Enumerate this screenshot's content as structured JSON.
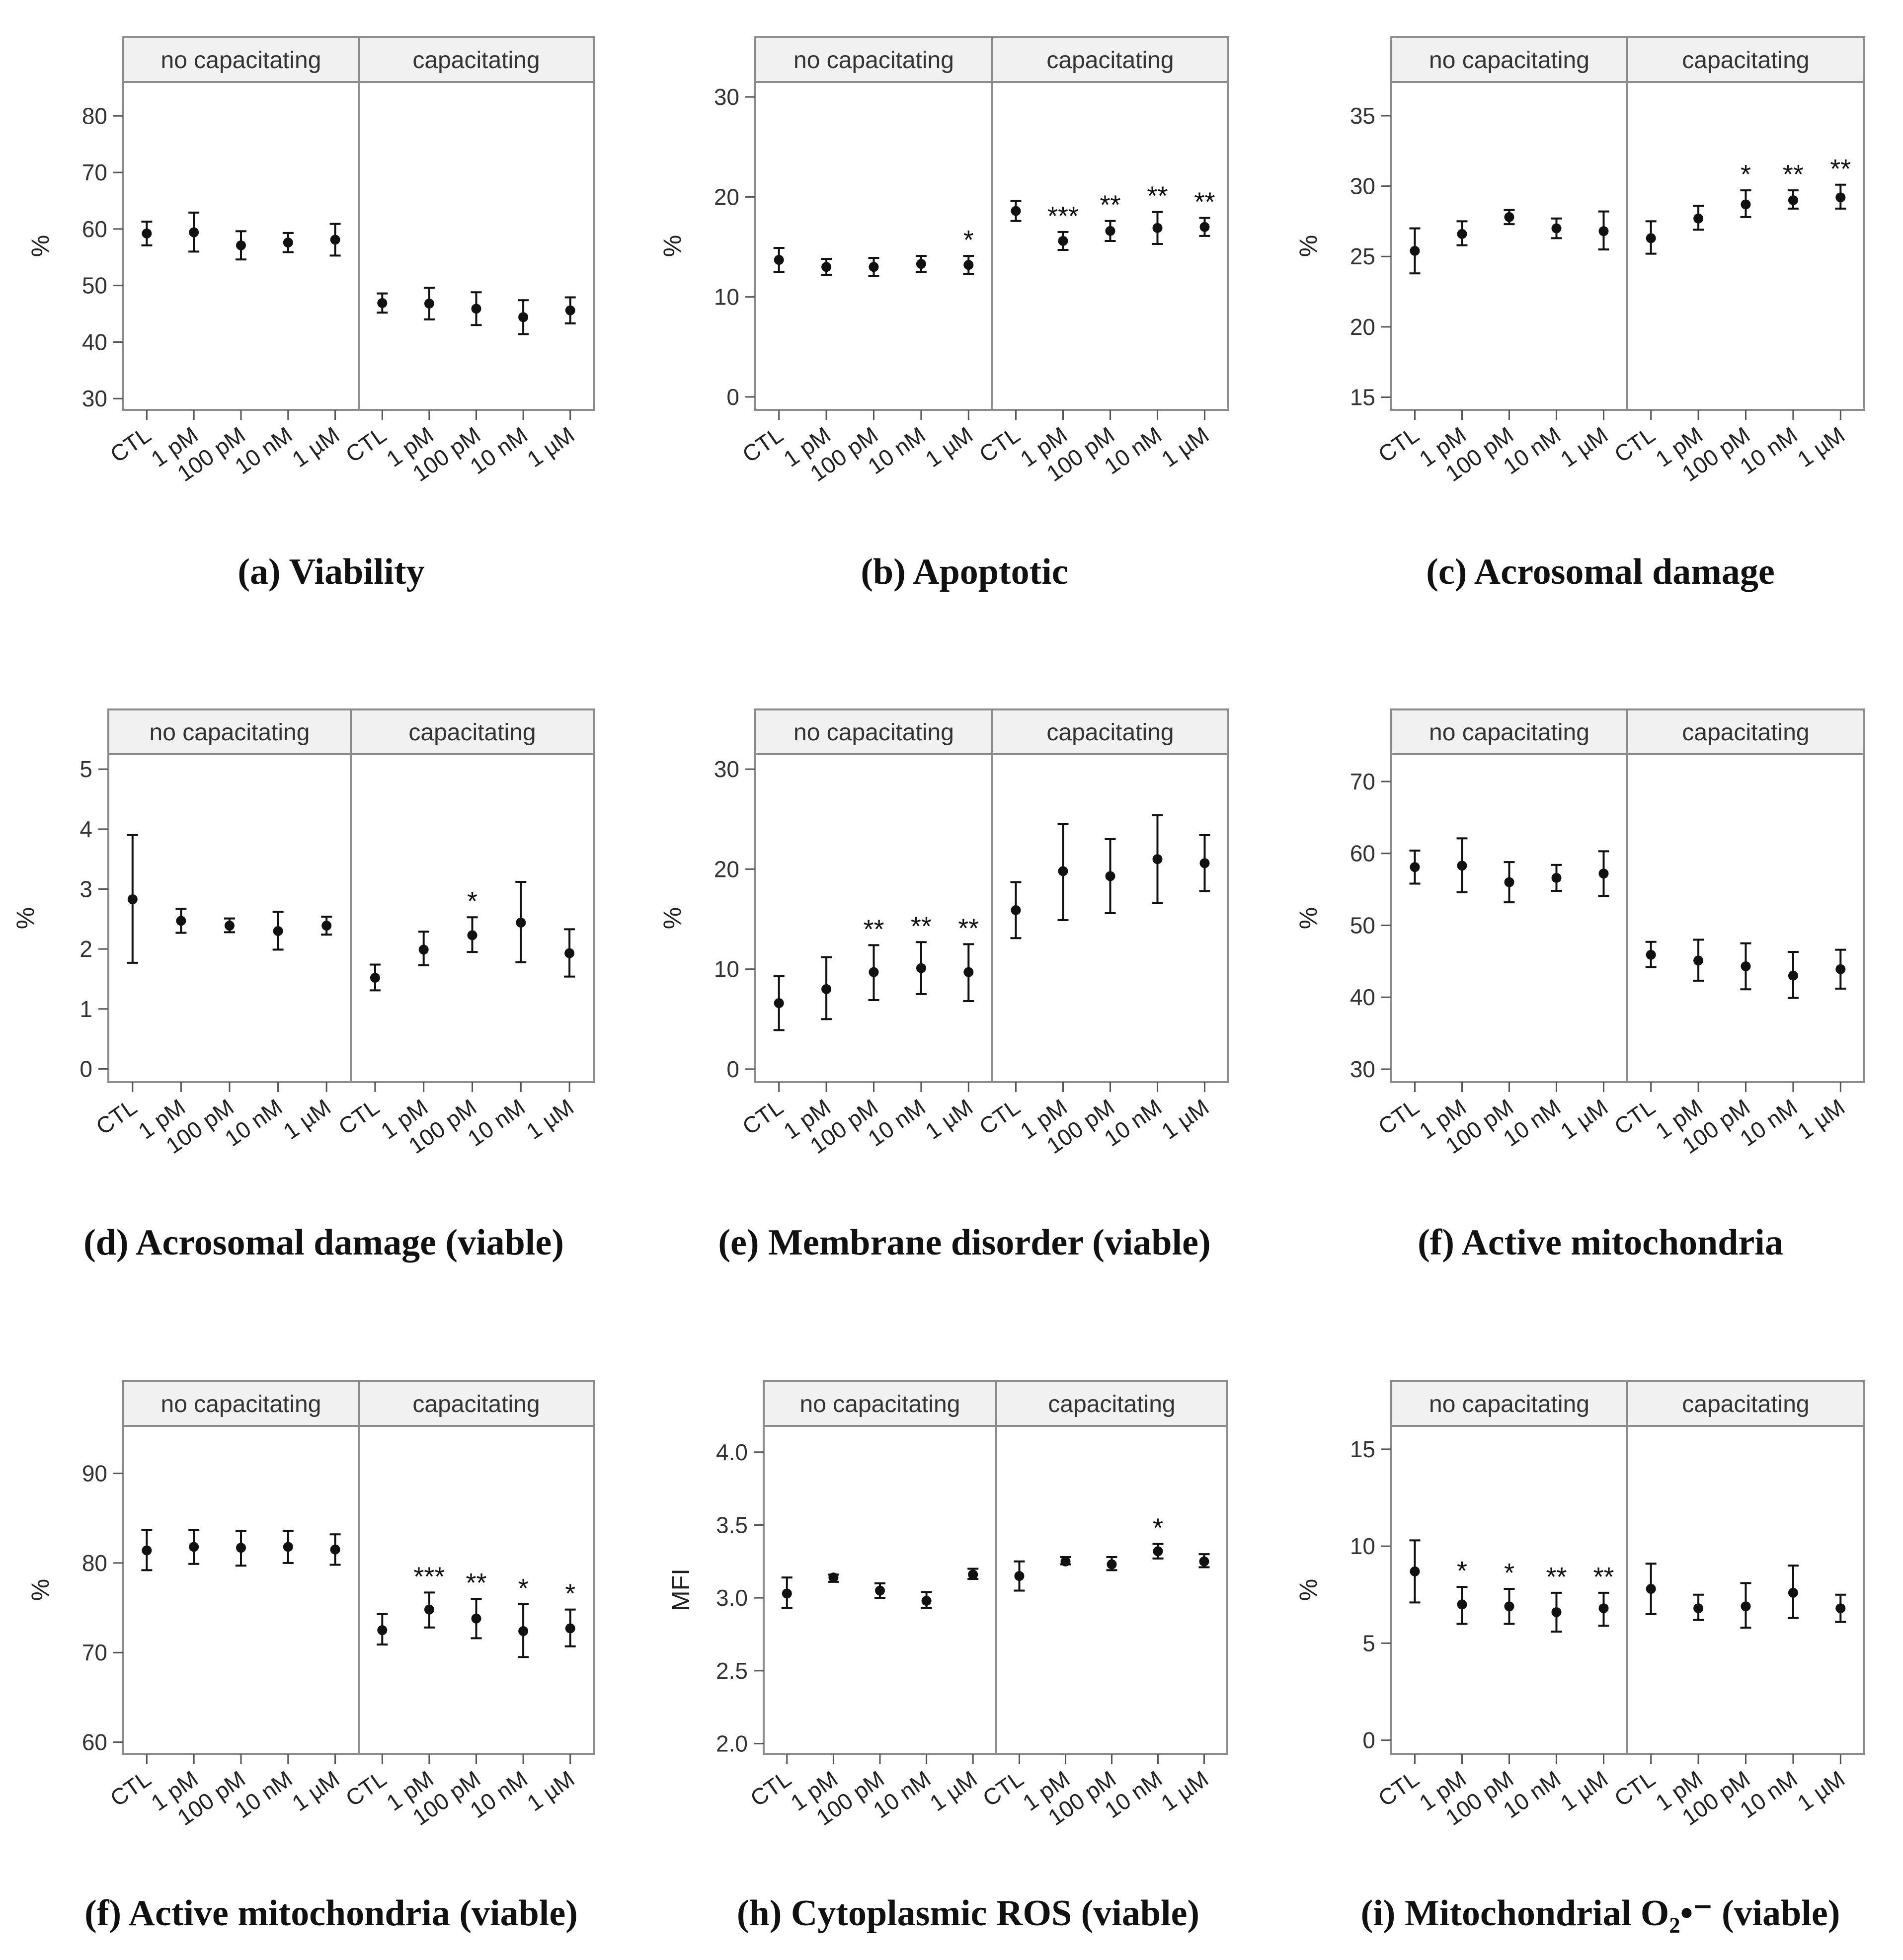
{
  "figure": {
    "facets": [
      "no capacitating",
      "capacitating"
    ],
    "categories": [
      "CTL",
      "1 pM",
      "100 pM",
      "10 nM",
      "1 µM"
    ]
  },
  "chart_data": [
    {
      "id": "a",
      "type": "scatter",
      "title": "(a) Viability",
      "ylabel": "%",
      "ylim": [
        28,
        86
      ],
      "yticks": [
        30,
        40,
        50,
        60,
        70,
        80
      ],
      "series": [
        {
          "name": "no capacitating",
          "values": [
            59.2,
            59.4,
            57.1,
            57.6,
            58.1
          ],
          "lower": [
            57.1,
            56.0,
            54.6,
            55.9,
            55.3
          ],
          "upper": [
            61.3,
            62.9,
            59.6,
            59.3,
            60.9
          ],
          "sig": [
            "",
            "",
            "",
            "",
            ""
          ]
        },
        {
          "name": "capacitating",
          "values": [
            46.9,
            46.8,
            45.9,
            44.4,
            45.6
          ],
          "lower": [
            45.2,
            44.0,
            43.0,
            41.4,
            43.3
          ],
          "upper": [
            48.6,
            49.6,
            48.8,
            47.4,
            47.9
          ],
          "sig": [
            "",
            "",
            "",
            "",
            ""
          ]
        }
      ]
    },
    {
      "id": "b",
      "type": "scatter",
      "title": "(b) Apoptotic",
      "ylabel": "%",
      "ylim": [
        -1.3,
        31.5
      ],
      "yticks": [
        0,
        10,
        20,
        30
      ],
      "series": [
        {
          "name": "no capacitating",
          "values": [
            13.7,
            13.0,
            13.0,
            13.3,
            13.2
          ],
          "lower": [
            12.5,
            12.2,
            12.1,
            12.5,
            12.3
          ],
          "upper": [
            14.9,
            13.8,
            13.9,
            14.1,
            14.1
          ],
          "sig": [
            "",
            "",
            "",
            "",
            "*"
          ]
        },
        {
          "name": "capacitating",
          "values": [
            18.6,
            15.6,
            16.6,
            16.9,
            17.0
          ],
          "lower": [
            17.6,
            14.7,
            15.6,
            15.3,
            16.1
          ],
          "upper": [
            19.6,
            16.5,
            17.6,
            18.5,
            17.9
          ],
          "sig": [
            "",
            "***",
            "**",
            "**",
            "**"
          ]
        }
      ]
    },
    {
      "id": "c",
      "type": "scatter",
      "title": "(c) Acrosomal damage",
      "ylabel": "%",
      "ylim": [
        14.1,
        37.4
      ],
      "yticks": [
        15,
        20,
        25,
        30,
        35
      ],
      "series": [
        {
          "name": "no capacitating",
          "values": [
            25.4,
            26.6,
            27.8,
            27.0,
            26.8
          ],
          "lower": [
            23.8,
            25.8,
            27.3,
            26.3,
            25.5
          ],
          "upper": [
            27.0,
            27.5,
            28.3,
            27.7,
            28.2
          ],
          "sig": [
            "",
            "",
            "",
            "",
            ""
          ]
        },
        {
          "name": "capacitating",
          "values": [
            26.3,
            27.7,
            28.7,
            29.0,
            29.2
          ],
          "lower": [
            25.2,
            26.9,
            27.8,
            28.4,
            28.4
          ],
          "upper": [
            27.5,
            28.6,
            29.7,
            29.7,
            30.1
          ],
          "sig": [
            "",
            "",
            "*",
            "**",
            "**"
          ]
        }
      ]
    },
    {
      "id": "d",
      "type": "scatter",
      "title": "(d) Acrosomal damage (viable)",
      "ylabel": "%",
      "ylim": [
        -0.22,
        5.25
      ],
      "yticks": [
        0,
        1,
        2,
        3,
        4,
        5
      ],
      "series": [
        {
          "name": "no capacitating",
          "values": [
            2.83,
            2.47,
            2.39,
            2.3,
            2.39
          ],
          "lower": [
            1.77,
            2.27,
            2.28,
            1.99,
            2.24
          ],
          "upper": [
            3.9,
            2.67,
            2.51,
            2.62,
            2.54
          ],
          "sig": [
            "",
            "",
            "",
            "",
            ""
          ]
        },
        {
          "name": "capacitating",
          "values": [
            1.52,
            1.99,
            2.23,
            2.44,
            1.93
          ],
          "lower": [
            1.31,
            1.73,
            1.95,
            1.78,
            1.54
          ],
          "upper": [
            1.74,
            2.29,
            2.53,
            3.12,
            2.33
          ],
          "sig": [
            "",
            "",
            "*",
            "",
            ""
          ]
        }
      ]
    },
    {
      "id": "e",
      "type": "scatter",
      "title": "(e) Membrane disorder (viable)",
      "ylabel": "%",
      "ylim": [
        -1.3,
        31.5
      ],
      "yticks": [
        0,
        10,
        20,
        30
      ],
      "series": [
        {
          "name": "no capacitating",
          "values": [
            6.6,
            8.0,
            9.7,
            10.1,
            9.7
          ],
          "lower": [
            3.9,
            5.0,
            6.9,
            7.5,
            6.8
          ],
          "upper": [
            9.3,
            11.2,
            12.4,
            12.7,
            12.5
          ],
          "sig": [
            "",
            "",
            "**",
            "**",
            "**"
          ]
        },
        {
          "name": "capacitating",
          "values": [
            15.9,
            19.8,
            19.3,
            21.0,
            20.6
          ],
          "lower": [
            13.1,
            14.9,
            15.6,
            16.6,
            17.8
          ],
          "upper": [
            18.7,
            24.5,
            23.0,
            25.4,
            23.4
          ],
          "sig": [
            "",
            "",
            "",
            "",
            ""
          ]
        }
      ]
    },
    {
      "id": "f",
      "type": "scatter",
      "title": "(f) Active mitochondria",
      "ylabel": "%",
      "ylim": [
        28.2,
        73.8
      ],
      "yticks": [
        30,
        40,
        50,
        60,
        70
      ],
      "series": [
        {
          "name": "no capacitating",
          "values": [
            58.1,
            58.3,
            56.0,
            56.6,
            57.2
          ],
          "lower": [
            55.8,
            54.6,
            53.2,
            54.8,
            54.1
          ],
          "upper": [
            60.4,
            62.1,
            58.8,
            58.4,
            60.3
          ],
          "sig": [
            "",
            "",
            "",
            "",
            ""
          ]
        },
        {
          "name": "capacitating",
          "values": [
            45.9,
            45.1,
            44.3,
            43.0,
            43.9
          ],
          "lower": [
            44.2,
            42.3,
            41.1,
            39.9,
            41.2
          ],
          "upper": [
            47.7,
            48.0,
            47.5,
            46.3,
            46.6
          ],
          "sig": [
            "",
            "",
            "",
            "",
            ""
          ]
        }
      ]
    },
    {
      "id": "g",
      "type": "scatter",
      "title": "(f) Active mitochondria (viable)",
      "ylabel": "%",
      "ylim": [
        58.7,
        95.3
      ],
      "yticks": [
        60,
        70,
        80,
        90
      ],
      "series": [
        {
          "name": "no capacitating",
          "values": [
            81.4,
            81.8,
            81.7,
            81.8,
            81.5
          ],
          "lower": [
            79.2,
            79.9,
            79.7,
            80.0,
            79.8
          ],
          "upper": [
            83.7,
            83.7,
            83.6,
            83.6,
            83.2
          ],
          "sig": [
            "",
            "",
            "",
            "",
            ""
          ]
        },
        {
          "name": "capacitating",
          "values": [
            72.5,
            74.8,
            73.8,
            72.4,
            72.7
          ],
          "lower": [
            70.9,
            72.8,
            71.6,
            69.5,
            70.7
          ],
          "upper": [
            74.3,
            76.7,
            76.0,
            75.4,
            74.8
          ],
          "sig": [
            "",
            "***",
            "**",
            "*",
            "*"
          ]
        }
      ]
    },
    {
      "id": "h",
      "type": "scatter",
      "title": "(h) Cytoplasmic ROS (viable)",
      "ylabel": "MFI",
      "ylim": [
        1.93,
        4.18
      ],
      "yticks": [
        "2.0",
        "2.5",
        "3.0",
        "3.5",
        "4.0"
      ],
      "series": [
        {
          "name": "no capacitating",
          "values": [
            3.03,
            3.14,
            3.05,
            2.98,
            3.16
          ],
          "lower": [
            2.93,
            3.11,
            3.0,
            2.93,
            3.13
          ],
          "upper": [
            3.14,
            3.16,
            3.1,
            3.04,
            3.2
          ],
          "sig": [
            "",
            "",
            "",
            "",
            ""
          ]
        },
        {
          "name": "capacitating",
          "values": [
            3.15,
            3.25,
            3.23,
            3.32,
            3.25
          ],
          "lower": [
            3.05,
            3.23,
            3.19,
            3.27,
            3.21
          ],
          "upper": [
            3.25,
            3.28,
            3.28,
            3.37,
            3.3
          ],
          "sig": [
            "",
            "",
            "",
            "*",
            ""
          ]
        }
      ]
    },
    {
      "id": "i",
      "type": "scatter",
      "title": "(i) Mitochondrial O₂•⁻ (viable)",
      "ylabel": "%",
      "ylim": [
        -0.7,
        16.2
      ],
      "yticks": [
        0,
        5,
        10,
        15
      ],
      "series": [
        {
          "name": "no capacitating",
          "values": [
            8.7,
            7.0,
            6.9,
            6.6,
            6.8
          ],
          "lower": [
            7.1,
            6.0,
            6.0,
            5.6,
            5.9
          ],
          "upper": [
            10.3,
            7.9,
            7.8,
            7.6,
            7.6
          ],
          "sig": [
            "",
            "*",
            "*",
            "**",
            "**"
          ]
        },
        {
          "name": "capacitating",
          "values": [
            7.8,
            6.8,
            6.9,
            7.6,
            6.8
          ],
          "lower": [
            6.5,
            6.2,
            5.8,
            6.3,
            6.1
          ],
          "upper": [
            9.1,
            7.5,
            8.1,
            9.0,
            7.5
          ],
          "sig": [
            "",
            "",
            "",
            "",
            ""
          ]
        }
      ]
    }
  ]
}
